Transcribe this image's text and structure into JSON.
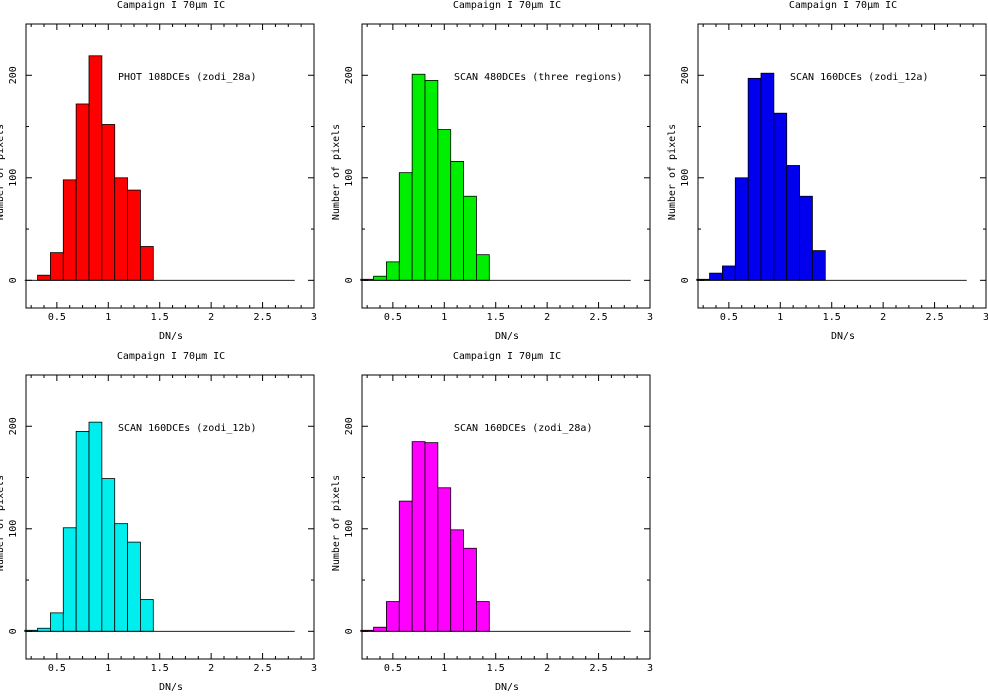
{
  "chart_data": [
    {
      "type": "bar",
      "title": "Campaign I 70μm IC",
      "annotation": "PHOT 108DCEs (zodi_28a)",
      "xlabel": "DN/s",
      "ylabel": "Number of pixels",
      "color": "#ff0000",
      "xlim": [
        0.2,
        3.0
      ],
      "ylim": [
        -27,
        250
      ],
      "xticks": [
        "0.5",
        "1",
        "1.5",
        "2",
        "2.5",
        "3"
      ],
      "yticks": [
        "0",
        "100",
        "200"
      ],
      "bin_width": 0.125,
      "bin_starts": [
        0.1875,
        0.3125,
        0.4375,
        0.5625,
        0.6875,
        0.8125,
        0.9375,
        1.0625,
        1.1875,
        1.3125,
        1.4375,
        1.5625,
        1.6875,
        1.8125,
        1.9375,
        2.0625,
        2.1875,
        2.3125,
        2.4375,
        2.5625,
        2.6875
      ],
      "values": [
        0,
        5,
        27,
        98,
        172,
        219,
        152,
        100,
        88,
        33,
        0,
        0,
        0,
        0,
        0,
        0,
        0,
        0,
        0,
        0,
        0
      ]
    },
    {
      "type": "bar",
      "title": "Campaign I 70μm IC",
      "annotation": "SCAN 480DCEs (three regions)",
      "xlabel": "DN/s",
      "ylabel": "Number of pixels",
      "color": "#00ee00",
      "xlim": [
        0.2,
        3.0
      ],
      "ylim": [
        -27,
        250
      ],
      "xticks": [
        "0.5",
        "1",
        "1.5",
        "2",
        "2.5",
        "3"
      ],
      "yticks": [
        "0",
        "100",
        "200"
      ],
      "bin_width": 0.125,
      "bin_starts": [
        0.1875,
        0.3125,
        0.4375,
        0.5625,
        0.6875,
        0.8125,
        0.9375,
        1.0625,
        1.1875,
        1.3125,
        1.4375,
        1.5625,
        1.6875,
        1.8125,
        1.9375,
        2.0625,
        2.1875,
        2.3125,
        2.4375,
        2.5625,
        2.6875
      ],
      "values": [
        1,
        4,
        18,
        105,
        201,
        195,
        147,
        116,
        82,
        25,
        0,
        0,
        0,
        0,
        0,
        0,
        0,
        0,
        0,
        0,
        0
      ]
    },
    {
      "type": "bar",
      "title": "Campaign I 70μm IC",
      "annotation": "SCAN 160DCEs (zodi_12a)",
      "xlabel": "DN/s",
      "ylabel": "Number of pixels",
      "color": "#0000ee",
      "xlim": [
        0.2,
        3.0
      ],
      "ylim": [
        -27,
        250
      ],
      "xticks": [
        "0.5",
        "1",
        "1.5",
        "2",
        "2.5",
        "3"
      ],
      "yticks": [
        "0",
        "100",
        "200"
      ],
      "bin_width": 0.125,
      "bin_starts": [
        0.1875,
        0.3125,
        0.4375,
        0.5625,
        0.6875,
        0.8125,
        0.9375,
        1.0625,
        1.1875,
        1.3125,
        1.4375,
        1.5625,
        1.6875,
        1.8125,
        1.9375,
        2.0625,
        2.1875,
        2.3125,
        2.4375,
        2.5625,
        2.6875
      ],
      "values": [
        1,
        7,
        14,
        100,
        197,
        202,
        163,
        112,
        82,
        29,
        0,
        0,
        0,
        0,
        0,
        0,
        0,
        0,
        0,
        0,
        0
      ]
    },
    {
      "type": "bar",
      "title": "Campaign I 70μm IC",
      "annotation": "SCAN 160DCEs (zodi_12b)",
      "xlabel": "DN/s",
      "ylabel": "Number of pixels",
      "color": "#00eeee",
      "xlim": [
        0.2,
        3.0
      ],
      "ylim": [
        -27,
        250
      ],
      "xticks": [
        "0.5",
        "1",
        "1.5",
        "2",
        "2.5",
        "3"
      ],
      "yticks": [
        "0",
        "100",
        "200"
      ],
      "bin_width": 0.125,
      "bin_starts": [
        0.1875,
        0.3125,
        0.4375,
        0.5625,
        0.6875,
        0.8125,
        0.9375,
        1.0625,
        1.1875,
        1.3125,
        1.4375,
        1.5625,
        1.6875,
        1.8125,
        1.9375,
        2.0625,
        2.1875,
        2.3125,
        2.4375,
        2.5625,
        2.6875
      ],
      "values": [
        1,
        3,
        18,
        101,
        195,
        204,
        149,
        105,
        87,
        31,
        0,
        0,
        0,
        0,
        0,
        0,
        0,
        0,
        0,
        0,
        0
      ]
    },
    {
      "type": "bar",
      "title": "Campaign I 70μm IC",
      "annotation": "SCAN 160DCEs (zodi_28a)",
      "xlabel": "DN/s",
      "ylabel": "Number of pixels",
      "color": "#ff00ff",
      "xlim": [
        0.2,
        3.0
      ],
      "ylim": [
        -27,
        250
      ],
      "xticks": [
        "0.5",
        "1",
        "1.5",
        "2",
        "2.5",
        "3"
      ],
      "yticks": [
        "0",
        "100",
        "200"
      ],
      "bin_width": 0.125,
      "bin_starts": [
        0.1875,
        0.3125,
        0.4375,
        0.5625,
        0.6875,
        0.8125,
        0.9375,
        1.0625,
        1.1875,
        1.3125,
        1.4375,
        1.5625,
        1.6875,
        1.8125,
        1.9375,
        2.0625,
        2.1875,
        2.3125,
        2.4375,
        2.5625,
        2.6875
      ],
      "values": [
        1,
        4,
        29,
        127,
        185,
        184,
        140,
        99,
        81,
        29,
        0,
        0,
        0,
        0,
        0,
        0,
        0,
        0,
        0,
        0,
        0
      ]
    }
  ]
}
